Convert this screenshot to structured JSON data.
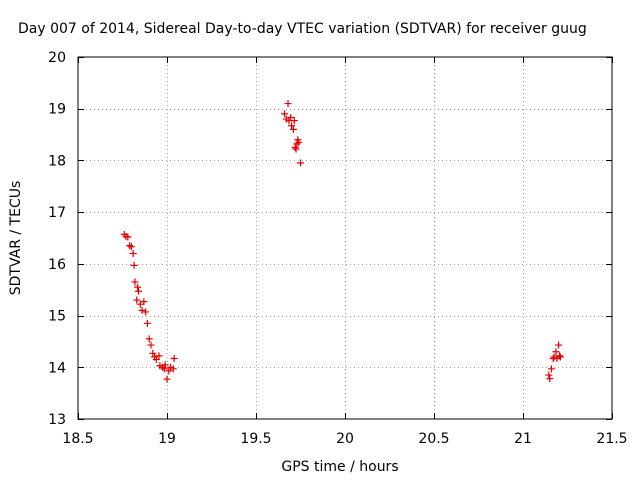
{
  "chart_data": {
    "type": "scatter",
    "title": "Day 007 of 2014, Sidereal Day-to-day VTEC variation (SDTVAR) for receiver guug",
    "xlabel": "GPS time / hours",
    "ylabel": "SDTVAR / TECUs",
    "xlim": [
      18.5,
      21.5
    ],
    "ylim": [
      13,
      20
    ],
    "xticks": [
      18.5,
      19,
      19.5,
      20,
      20.5,
      21,
      21.5
    ],
    "xtick_labels": [
      "18.5",
      "19",
      "19.5",
      "20",
      "20.5",
      "21",
      "21.5"
    ],
    "yticks": [
      13,
      14,
      15,
      16,
      17,
      18,
      19,
      20
    ],
    "ytick_labels": [
      "13",
      "14",
      "15",
      "16",
      "17",
      "18",
      "19",
      "20"
    ],
    "grid": true,
    "marker": "+",
    "series": [
      {
        "name": "SDTVAR",
        "color": "#e00000",
        "points": [
          [
            18.76,
            16.57
          ],
          [
            18.77,
            16.53
          ],
          [
            18.78,
            16.52
          ],
          [
            18.79,
            16.35
          ],
          [
            18.8,
            16.33
          ],
          [
            18.81,
            16.2
          ],
          [
            18.815,
            15.97
          ],
          [
            18.82,
            15.65
          ],
          [
            18.835,
            15.55
          ],
          [
            18.84,
            15.47
          ],
          [
            18.83,
            15.3
          ],
          [
            18.85,
            15.22
          ],
          [
            18.86,
            15.1
          ],
          [
            18.87,
            15.27
          ],
          [
            18.88,
            15.07
          ],
          [
            18.89,
            14.85
          ],
          [
            18.9,
            14.55
          ],
          [
            18.91,
            14.43
          ],
          [
            18.92,
            14.27
          ],
          [
            18.93,
            14.2
          ],
          [
            18.94,
            14.15
          ],
          [
            18.955,
            14.22
          ],
          [
            18.96,
            14.03
          ],
          [
            18.975,
            14.0
          ],
          [
            18.985,
            13.97
          ],
          [
            18.99,
            14.05
          ],
          [
            19.0,
            13.77
          ],
          [
            19.01,
            13.93
          ],
          [
            19.02,
            14.0
          ],
          [
            19.035,
            13.97
          ],
          [
            19.04,
            14.17
          ],
          [
            19.66,
            18.9
          ],
          [
            19.67,
            18.8
          ],
          [
            19.68,
            19.1
          ],
          [
            19.685,
            18.77
          ],
          [
            19.695,
            18.83
          ],
          [
            19.7,
            18.67
          ],
          [
            19.71,
            18.6
          ],
          [
            19.715,
            18.77
          ],
          [
            19.72,
            18.25
          ],
          [
            19.725,
            18.22
          ],
          [
            19.73,
            18.32
          ],
          [
            19.735,
            18.4
          ],
          [
            19.74,
            18.35
          ],
          [
            19.75,
            17.95
          ],
          [
            21.145,
            13.85
          ],
          [
            21.15,
            13.78
          ],
          [
            21.16,
            13.97
          ],
          [
            21.17,
            14.17
          ],
          [
            21.175,
            14.2
          ],
          [
            21.185,
            14.3
          ],
          [
            21.19,
            14.17
          ],
          [
            21.2,
            14.43
          ],
          [
            21.205,
            14.22
          ],
          [
            21.21,
            14.2
          ]
        ]
      }
    ]
  }
}
